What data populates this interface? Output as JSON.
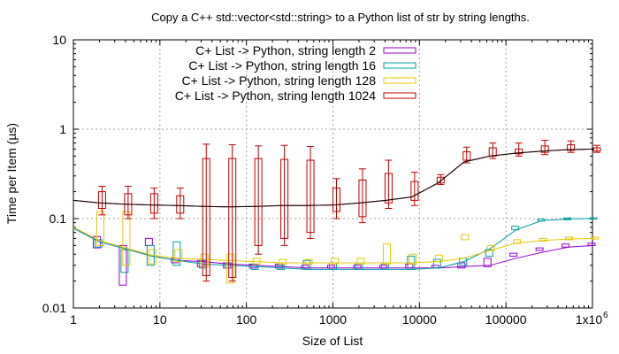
{
  "chart_data": {
    "type": "line",
    "title": "Copy a C++ std::vector<std::string> to a Python list of str by string lengths.",
    "xlabel": "Size of List",
    "ylabel": "Time per Item (µs)",
    "xscale": "log",
    "yscale": "log",
    "xlim": [
      1,
      1000000
    ],
    "ylim": [
      0.01,
      10
    ],
    "grid": true,
    "legend_position": "top-left",
    "x_ticks": [
      {
        "v": 1,
        "label": "1"
      },
      {
        "v": 10,
        "label": "10"
      },
      {
        "v": 100,
        "label": "100"
      },
      {
        "v": 1000,
        "label": "1000"
      },
      {
        "v": 10000,
        "label": "10000"
      },
      {
        "v": 100000,
        "label": "100000"
      },
      {
        "v": 1000000,
        "label": "1x10"
      }
    ],
    "x_last_tick_exponent": "6",
    "y_ticks": [
      {
        "v": 0.01,
        "label": "0.01"
      },
      {
        "v": 0.1,
        "label": "0.1"
      },
      {
        "v": 1,
        "label": "1"
      },
      {
        "v": 10,
        "label": "10"
      }
    ],
    "series": [
      {
        "name": "C+ List -> Python, string length 2",
        "color": "#9400d3",
        "line": [
          [
            1,
            0.08
          ],
          [
            2,
            0.055
          ],
          [
            4,
            0.046
          ],
          [
            8,
            0.038
          ],
          [
            16,
            0.034
          ],
          [
            32,
            0.033
          ],
          [
            64,
            0.031
          ],
          [
            128,
            0.03
          ],
          [
            256,
            0.029
          ],
          [
            512,
            0.028
          ],
          [
            1024,
            0.028
          ],
          [
            2048,
            0.028
          ],
          [
            4096,
            0.028
          ],
          [
            8192,
            0.028
          ],
          [
            16384,
            0.028
          ],
          [
            32768,
            0.029
          ],
          [
            65536,
            0.03
          ],
          [
            131072,
            0.036
          ],
          [
            262144,
            0.042
          ],
          [
            524288,
            0.048
          ],
          [
            1048576,
            0.05
          ]
        ],
        "boxes": [
          [
            2,
            0.047,
            0.063
          ],
          [
            4,
            0.018,
            0.05
          ],
          [
            8,
            0.05,
            0.06
          ],
          [
            16,
            0.032,
            0.036
          ],
          [
            32,
            0.029,
            0.034
          ],
          [
            64,
            0.028,
            0.032
          ],
          [
            128,
            0.028,
            0.031
          ],
          [
            256,
            0.028,
            0.031
          ],
          [
            512,
            0.028,
            0.03
          ],
          [
            1024,
            0.028,
            0.03
          ],
          [
            2048,
            0.028,
            0.03
          ],
          [
            4096,
            0.028,
            0.03
          ],
          [
            8192,
            0.028,
            0.031
          ],
          [
            16384,
            0.028,
            0.03
          ],
          [
            32768,
            0.028,
            0.032
          ],
          [
            65536,
            0.029,
            0.036
          ],
          [
            131072,
            0.038,
            0.041
          ],
          [
            262144,
            0.044,
            0.047
          ],
          [
            524288,
            0.048,
            0.052
          ],
          [
            1048576,
            0.05,
            0.053
          ]
        ]
      },
      {
        "name": "C+ List -> Python, string length 16",
        "color": "#009e9e",
        "line": [
          [
            1,
            0.078
          ],
          [
            2,
            0.055
          ],
          [
            4,
            0.046
          ],
          [
            8,
            0.038
          ],
          [
            16,
            0.034
          ],
          [
            32,
            0.031
          ],
          [
            64,
            0.03
          ],
          [
            128,
            0.029
          ],
          [
            256,
            0.028
          ],
          [
            512,
            0.027
          ],
          [
            1024,
            0.027
          ],
          [
            2048,
            0.027
          ],
          [
            4096,
            0.027
          ],
          [
            8192,
            0.027
          ],
          [
            16384,
            0.028
          ],
          [
            32768,
            0.033
          ],
          [
            65536,
            0.046
          ],
          [
            131072,
            0.075
          ],
          [
            262144,
            0.095
          ],
          [
            524288,
            0.099
          ],
          [
            1048576,
            0.1
          ]
        ],
        "boxes": [
          [
            2,
            0.048,
            0.058
          ],
          [
            4,
            0.025,
            0.045
          ],
          [
            8,
            0.03,
            0.05
          ],
          [
            16,
            0.03,
            0.055
          ],
          [
            32,
            0.028,
            0.034
          ],
          [
            64,
            0.028,
            0.032
          ],
          [
            128,
            0.027,
            0.031
          ],
          [
            256,
            0.027,
            0.03
          ],
          [
            512,
            0.027,
            0.034
          ],
          [
            1024,
            0.027,
            0.032
          ],
          [
            2048,
            0.027,
            0.031
          ],
          [
            4096,
            0.027,
            0.031
          ],
          [
            8192,
            0.027,
            0.038
          ],
          [
            16384,
            0.028,
            0.035
          ],
          [
            32768,
            0.03,
            0.036
          ],
          [
            65536,
            0.038,
            0.045
          ],
          [
            131072,
            0.075,
            0.082
          ],
          [
            262144,
            0.094,
            0.099
          ],
          [
            524288,
            0.097,
            0.102
          ],
          [
            1048576,
            0.099,
            0.102
          ]
        ]
      },
      {
        "name": "C+ List -> Python, string length 128",
        "color": "#e6c800",
        "line": [
          [
            1,
            0.08
          ],
          [
            2,
            0.057
          ],
          [
            4,
            0.047
          ],
          [
            8,
            0.039
          ],
          [
            16,
            0.036
          ],
          [
            32,
            0.035
          ],
          [
            64,
            0.034
          ],
          [
            128,
            0.033
          ],
          [
            256,
            0.032
          ],
          [
            512,
            0.032
          ],
          [
            1024,
            0.032
          ],
          [
            2048,
            0.032
          ],
          [
            4096,
            0.032
          ],
          [
            8192,
            0.032
          ],
          [
            16384,
            0.033
          ],
          [
            32768,
            0.036
          ],
          [
            65536,
            0.044
          ],
          [
            131072,
            0.053
          ],
          [
            262144,
            0.057
          ],
          [
            524288,
            0.059
          ],
          [
            1048576,
            0.06
          ]
        ],
        "boxes": [
          [
            2,
            0.05,
            0.12
          ],
          [
            4,
            0.03,
            0.12
          ],
          [
            8,
            0.031,
            0.045
          ],
          [
            16,
            0.033,
            0.045
          ],
          [
            32,
            0.029,
            0.04
          ],
          [
            64,
            0.019,
            0.04
          ],
          [
            128,
            0.031,
            0.036
          ],
          [
            256,
            0.031,
            0.035
          ],
          [
            512,
            0.031,
            0.035
          ],
          [
            1024,
            0.031,
            0.036
          ],
          [
            2048,
            0.031,
            0.036
          ],
          [
            4096,
            0.031,
            0.052
          ],
          [
            8192,
            0.031,
            0.04
          ],
          [
            16384,
            0.033,
            0.039
          ],
          [
            32768,
            0.058,
            0.066
          ],
          [
            65536,
            0.044,
            0.05
          ],
          [
            131072,
            0.053,
            0.058
          ],
          [
            262144,
            0.056,
            0.06
          ],
          [
            524288,
            0.058,
            0.062
          ],
          [
            1048576,
            0.059,
            0.062
          ]
        ]
      },
      {
        "name": "C+ List -> Python, string length 1024",
        "color": "#c00000",
        "line": [
          [
            1,
            0.16
          ],
          [
            2,
            0.15
          ],
          [
            4,
            0.145
          ],
          [
            8,
            0.142
          ],
          [
            16,
            0.14
          ],
          [
            32,
            0.137
          ],
          [
            64,
            0.135
          ],
          [
            128,
            0.137
          ],
          [
            256,
            0.14
          ],
          [
            512,
            0.14
          ],
          [
            1024,
            0.142
          ],
          [
            2048,
            0.15
          ],
          [
            4096,
            0.16
          ],
          [
            8192,
            0.175
          ],
          [
            16384,
            0.25
          ],
          [
            32768,
            0.43
          ],
          [
            65536,
            0.5
          ],
          [
            131072,
            0.54
          ],
          [
            262144,
            0.57
          ],
          [
            524288,
            0.59
          ],
          [
            1048576,
            0.6
          ]
        ],
        "boxes": [
          [
            2,
            0.13,
            0.2
          ],
          [
            4,
            0.11,
            0.19
          ],
          [
            8,
            0.115,
            0.19
          ],
          [
            16,
            0.115,
            0.18
          ],
          [
            32,
            0.023,
            0.47
          ],
          [
            64,
            0.022,
            0.47
          ],
          [
            128,
            0.05,
            0.47
          ],
          [
            256,
            0.06,
            0.46
          ],
          [
            512,
            0.07,
            0.45
          ],
          [
            1024,
            0.12,
            0.22
          ],
          [
            2048,
            0.105,
            0.27
          ],
          [
            4096,
            0.15,
            0.32
          ],
          [
            8192,
            0.16,
            0.26
          ],
          [
            16384,
            0.25,
            0.29
          ],
          [
            32768,
            0.45,
            0.56
          ],
          [
            65536,
            0.5,
            0.62
          ],
          [
            131072,
            0.53,
            0.6
          ],
          [
            262144,
            0.55,
            0.65
          ],
          [
            524288,
            0.58,
            0.67
          ],
          [
            1048576,
            0.57,
            0.62
          ]
        ],
        "whiskers": [
          [
            2,
            0.11,
            0.23
          ],
          [
            4,
            0.1,
            0.23
          ],
          [
            8,
            0.1,
            0.22
          ],
          [
            16,
            0.1,
            0.22
          ],
          [
            32,
            0.02,
            0.68
          ],
          [
            64,
            0.02,
            0.67
          ],
          [
            128,
            0.04,
            0.65
          ],
          [
            256,
            0.05,
            0.66
          ],
          [
            512,
            0.06,
            0.64
          ],
          [
            1024,
            0.1,
            0.28
          ],
          [
            2048,
            0.09,
            0.36
          ],
          [
            4096,
            0.13,
            0.45
          ],
          [
            8192,
            0.14,
            0.33
          ],
          [
            16384,
            0.24,
            0.31
          ],
          [
            32768,
            0.42,
            0.63
          ],
          [
            65536,
            0.47,
            0.7
          ],
          [
            131072,
            0.5,
            0.7
          ],
          [
            262144,
            0.52,
            0.75
          ],
          [
            524288,
            0.55,
            0.74
          ],
          [
            1048576,
            0.55,
            0.66
          ]
        ]
      }
    ],
    "black_line": [
      [
        1,
        0.16
      ],
      [
        2,
        0.15
      ],
      [
        4,
        0.145
      ],
      [
        8,
        0.142
      ],
      [
        16,
        0.14
      ],
      [
        32,
        0.137
      ],
      [
        64,
        0.135
      ],
      [
        128,
        0.137
      ],
      [
        256,
        0.14
      ],
      [
        512,
        0.14
      ],
      [
        1024,
        0.142
      ],
      [
        2048,
        0.15
      ],
      [
        4096,
        0.16
      ],
      [
        8192,
        0.175
      ],
      [
        16384,
        0.25
      ],
      [
        32768,
        0.43
      ],
      [
        65536,
        0.5
      ],
      [
        131072,
        0.54
      ],
      [
        262144,
        0.57
      ],
      [
        524288,
        0.59
      ],
      [
        1048576,
        0.6
      ]
    ]
  }
}
